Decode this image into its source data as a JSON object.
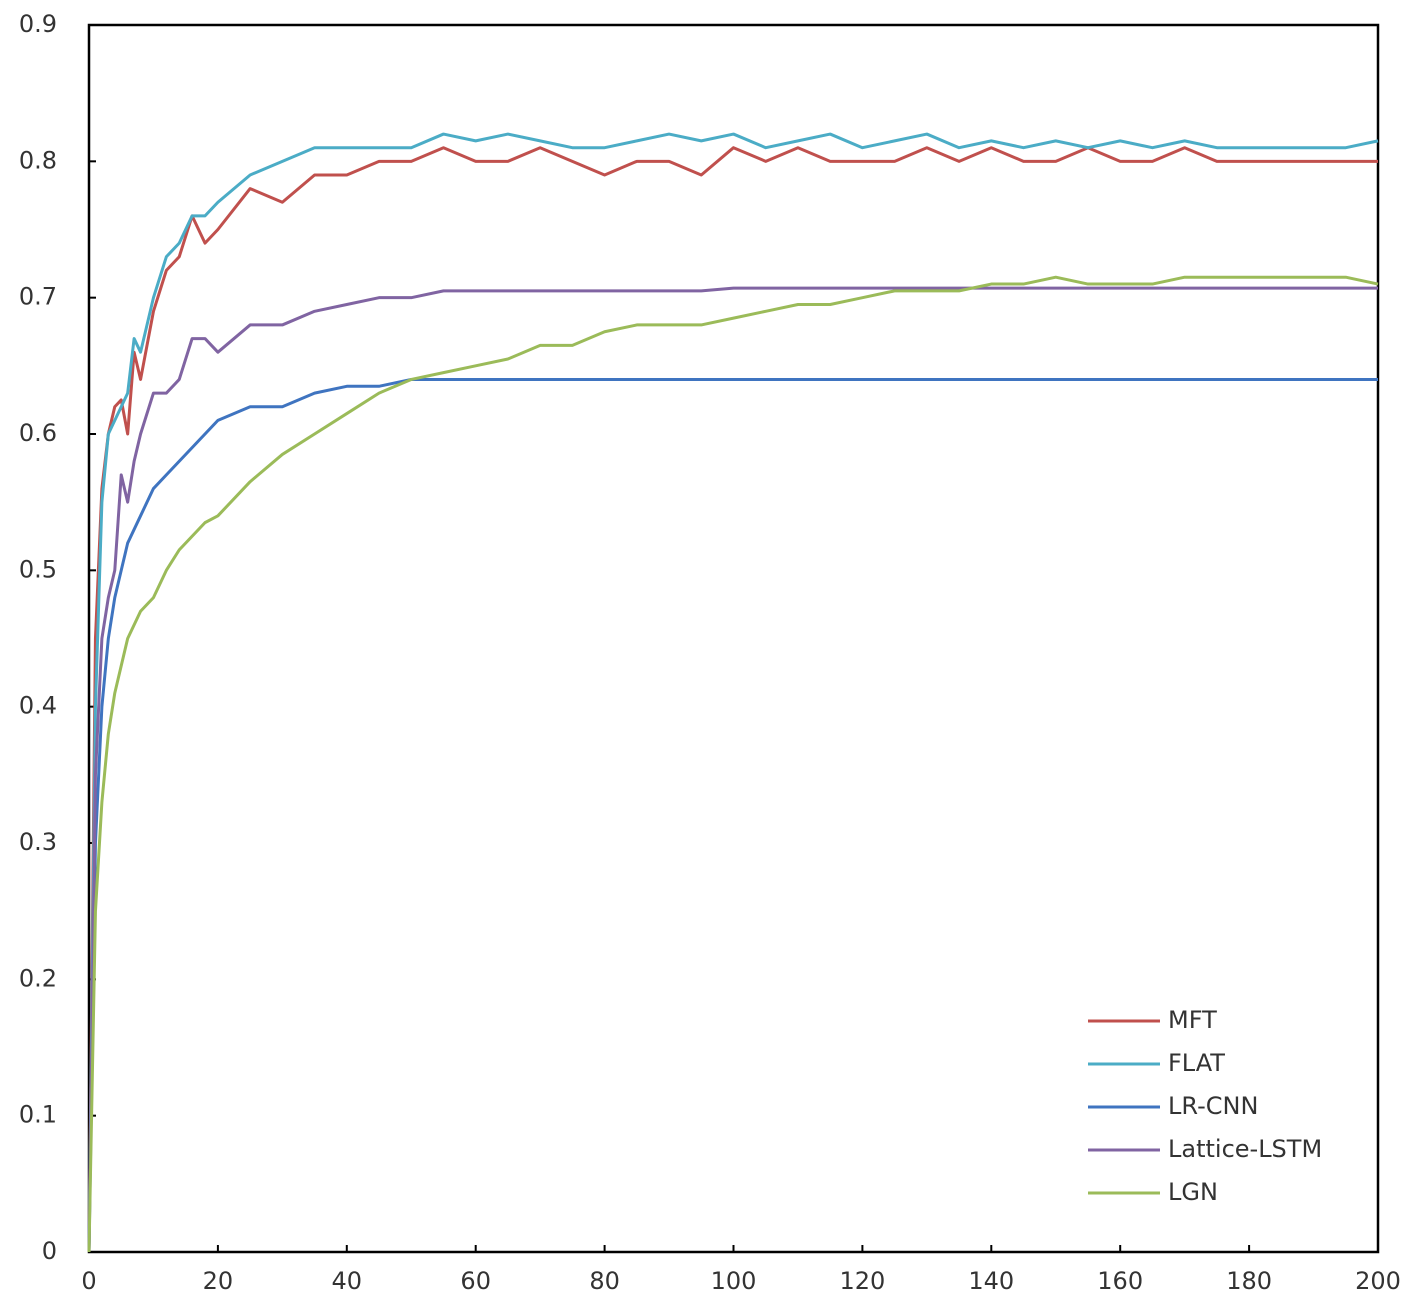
{
  "chart_data": {
    "type": "line",
    "x": [
      0,
      1,
      2,
      3,
      4,
      5,
      6,
      7,
      8,
      10,
      12,
      14,
      16,
      18,
      20,
      25,
      30,
      35,
      40,
      45,
      50,
      55,
      60,
      65,
      70,
      75,
      80,
      85,
      90,
      95,
      100,
      105,
      110,
      115,
      120,
      125,
      130,
      135,
      140,
      145,
      150,
      155,
      160,
      165,
      170,
      175,
      180,
      185,
      190,
      195,
      200
    ],
    "series": [
      {
        "name": "MFT",
        "color": "#c0504d",
        "values": [
          0,
          0.45,
          0.56,
          0.6,
          0.62,
          0.625,
          0.6,
          0.66,
          0.64,
          0.69,
          0.72,
          0.73,
          0.76,
          0.74,
          0.75,
          0.78,
          0.77,
          0.79,
          0.79,
          0.8,
          0.8,
          0.81,
          0.8,
          0.8,
          0.81,
          0.8,
          0.79,
          0.8,
          0.8,
          0.79,
          0.81,
          0.8,
          0.81,
          0.8,
          0.8,
          0.8,
          0.81,
          0.8,
          0.81,
          0.8,
          0.8,
          0.81,
          0.8,
          0.8,
          0.81,
          0.8,
          0.8,
          0.8,
          0.8,
          0.8,
          0.8
        ]
      },
      {
        "name": "FLAT",
        "color": "#4bacc6",
        "values": [
          0,
          0.4,
          0.55,
          0.6,
          0.61,
          0.62,
          0.63,
          0.67,
          0.66,
          0.7,
          0.73,
          0.74,
          0.76,
          0.76,
          0.77,
          0.79,
          0.8,
          0.81,
          0.81,
          0.81,
          0.81,
          0.82,
          0.815,
          0.82,
          0.815,
          0.81,
          0.81,
          0.815,
          0.82,
          0.815,
          0.82,
          0.81,
          0.815,
          0.82,
          0.81,
          0.815,
          0.82,
          0.81,
          0.815,
          0.81,
          0.815,
          0.81,
          0.815,
          0.81,
          0.815,
          0.81,
          0.81,
          0.81,
          0.81,
          0.81,
          0.815
        ]
      },
      {
        "name": "LR-CNN",
        "color": "#3f74c0",
        "values": [
          0,
          0.3,
          0.4,
          0.45,
          0.48,
          0.5,
          0.52,
          0.53,
          0.54,
          0.56,
          0.57,
          0.58,
          0.59,
          0.6,
          0.61,
          0.62,
          0.62,
          0.63,
          0.635,
          0.635,
          0.64,
          0.64,
          0.64,
          0.64,
          0.64,
          0.64,
          0.64,
          0.64,
          0.64,
          0.64,
          0.64,
          0.64,
          0.64,
          0.64,
          0.64,
          0.64,
          0.64,
          0.64,
          0.64,
          0.64,
          0.64,
          0.64,
          0.64,
          0.64,
          0.64,
          0.64,
          0.64,
          0.64,
          0.64,
          0.64,
          0.64
        ]
      },
      {
        "name": "Lattice-LSTM",
        "color": "#8064a2",
        "values": [
          0,
          0.35,
          0.45,
          0.48,
          0.5,
          0.57,
          0.55,
          0.58,
          0.6,
          0.63,
          0.63,
          0.64,
          0.67,
          0.67,
          0.66,
          0.68,
          0.68,
          0.69,
          0.695,
          0.7,
          0.7,
          0.705,
          0.705,
          0.705,
          0.705,
          0.705,
          0.705,
          0.705,
          0.705,
          0.705,
          0.707,
          0.707,
          0.707,
          0.707,
          0.707,
          0.707,
          0.707,
          0.707,
          0.707,
          0.707,
          0.707,
          0.707,
          0.707,
          0.707,
          0.707,
          0.707,
          0.707,
          0.707,
          0.707,
          0.707,
          0.707
        ]
      },
      {
        "name": "LGN",
        "color": "#9bbb59",
        "values": [
          0,
          0.25,
          0.33,
          0.38,
          0.41,
          0.43,
          0.45,
          0.46,
          0.47,
          0.48,
          0.5,
          0.515,
          0.525,
          0.535,
          0.54,
          0.565,
          0.585,
          0.6,
          0.615,
          0.63,
          0.64,
          0.645,
          0.65,
          0.655,
          0.665,
          0.665,
          0.675,
          0.68,
          0.68,
          0.68,
          0.685,
          0.69,
          0.695,
          0.695,
          0.7,
          0.705,
          0.705,
          0.705,
          0.71,
          0.71,
          0.715,
          0.71,
          0.71,
          0.71,
          0.715,
          0.715,
          0.715,
          0.715,
          0.715,
          0.715,
          0.71
        ]
      }
    ],
    "xlim": [
      0,
      200
    ],
    "xticks": [
      0,
      20,
      40,
      60,
      80,
      100,
      120,
      140,
      160,
      180,
      200
    ],
    "ylim": [
      0,
      0.9
    ],
    "yticks": [
      0,
      0.1,
      0.2,
      0.3,
      0.4,
      0.5,
      0.6,
      0.7,
      0.8,
      0.9
    ],
    "grid": false,
    "legend": "lower right"
  }
}
